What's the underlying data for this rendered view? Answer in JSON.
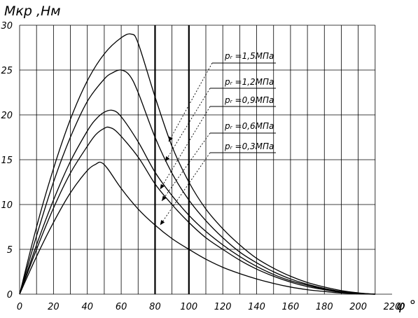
{
  "chart_data": {
    "type": "line",
    "xlabel": "φ °",
    "ylabel": "Mкр ,Нм",
    "xlim": [
      0,
      220
    ],
    "ylim": [
      0,
      30
    ],
    "xticks": [
      0,
      20,
      40,
      60,
      80,
      100,
      120,
      140,
      160,
      180,
      200,
      220
    ],
    "yticks": [
      0,
      5,
      10,
      15,
      20,
      25,
      30
    ],
    "highlighted_x": [
      80,
      100
    ],
    "grid": true,
    "series": [
      {
        "name": "pᵣ =1,5МПа",
        "points": [
          [
            0,
            0
          ],
          [
            10,
            7.5
          ],
          [
            20,
            14
          ],
          [
            30,
            19.5
          ],
          [
            40,
            23.8
          ],
          [
            50,
            26.8
          ],
          [
            60,
            28.6
          ],
          [
            66,
            29
          ],
          [
            70,
            28
          ],
          [
            80,
            22
          ],
          [
            90,
            16.5
          ],
          [
            100,
            12.5
          ],
          [
            110,
            9.5
          ],
          [
            120,
            7.3
          ],
          [
            130,
            5.5
          ],
          [
            140,
            4
          ],
          [
            150,
            2.9
          ],
          [
            160,
            2
          ],
          [
            170,
            1.3
          ],
          [
            180,
            0.8
          ],
          [
            190,
            0.4
          ],
          [
            200,
            0.15
          ],
          [
            210,
            0
          ]
        ]
      },
      {
        "name": "pᵣ =1,2МПа",
        "points": [
          [
            0,
            0
          ],
          [
            10,
            6.5
          ],
          [
            20,
            12.5
          ],
          [
            30,
            17.5
          ],
          [
            40,
            21.5
          ],
          [
            50,
            24
          ],
          [
            55,
            24.7
          ],
          [
            60,
            25
          ],
          [
            65,
            24.4
          ],
          [
            70,
            22.5
          ],
          [
            80,
            17.5
          ],
          [
            90,
            13.5
          ],
          [
            100,
            10.5
          ],
          [
            110,
            8.2
          ],
          [
            120,
            6.3
          ],
          [
            130,
            4.7
          ],
          [
            140,
            3.5
          ],
          [
            150,
            2.5
          ],
          [
            160,
            1.7
          ],
          [
            170,
            1.1
          ],
          [
            180,
            0.65
          ],
          [
            190,
            0.3
          ],
          [
            200,
            0.1
          ],
          [
            210,
            0
          ]
        ]
      },
      {
        "name": "pᵣ =0,9МПа",
        "points": [
          [
            0,
            0
          ],
          [
            10,
            5.5
          ],
          [
            20,
            10.5
          ],
          [
            30,
            14.8
          ],
          [
            40,
            18.2
          ],
          [
            45,
            19.5
          ],
          [
            50,
            20.3
          ],
          [
            55,
            20.5
          ],
          [
            60,
            19.8
          ],
          [
            70,
            17
          ],
          [
            80,
            13.6
          ],
          [
            90,
            11
          ],
          [
            100,
            8.8
          ],
          [
            110,
            7
          ],
          [
            120,
            5.5
          ],
          [
            130,
            4.2
          ],
          [
            140,
            3.1
          ],
          [
            150,
            2.2
          ],
          [
            160,
            1.5
          ],
          [
            170,
            1
          ],
          [
            180,
            0.55
          ],
          [
            190,
            0.25
          ],
          [
            200,
            0.08
          ],
          [
            210,
            0
          ]
        ]
      },
      {
        "name": "pᵣ =0,6МПа",
        "points": [
          [
            0,
            0
          ],
          [
            10,
            5
          ],
          [
            20,
            9.6
          ],
          [
            30,
            13.5
          ],
          [
            40,
            16.5
          ],
          [
            45,
            17.8
          ],
          [
            50,
            18.5
          ],
          [
            53,
            18.6
          ],
          [
            58,
            18
          ],
          [
            70,
            15.3
          ],
          [
            80,
            12.3
          ],
          [
            90,
            10
          ],
          [
            100,
            8
          ],
          [
            110,
            6.3
          ],
          [
            120,
            5
          ],
          [
            130,
            3.8
          ],
          [
            140,
            2.8
          ],
          [
            150,
            2
          ],
          [
            160,
            1.35
          ],
          [
            170,
            0.85
          ],
          [
            180,
            0.5
          ],
          [
            190,
            0.2
          ],
          [
            200,
            0.06
          ],
          [
            210,
            0
          ]
        ]
      },
      {
        "name": "pᵣ =0,3МПа",
        "points": [
          [
            0,
            0
          ],
          [
            10,
            4.2
          ],
          [
            20,
            8
          ],
          [
            30,
            11.3
          ],
          [
            40,
            13.8
          ],
          [
            45,
            14.5
          ],
          [
            48,
            14.7
          ],
          [
            52,
            14
          ],
          [
            60,
            11.8
          ],
          [
            70,
            9.5
          ],
          [
            80,
            7.7
          ],
          [
            90,
            6.2
          ],
          [
            100,
            5
          ],
          [
            110,
            3.9
          ],
          [
            120,
            3
          ],
          [
            130,
            2.3
          ],
          [
            140,
            1.7
          ],
          [
            150,
            1.2
          ],
          [
            160,
            0.8
          ],
          [
            170,
            0.5
          ],
          [
            180,
            0.3
          ],
          [
            190,
            0.13
          ],
          [
            200,
            0.04
          ],
          [
            210,
            0
          ]
        ]
      }
    ],
    "labels": [
      "pᵣ =1,5МПа",
      "pᵣ =1,2МПа",
      "pᵣ =0,9МПа",
      "pᵣ =0,6МПа",
      "pᵣ =0,3МПа"
    ],
    "label_targets": [
      [
        88,
        17
      ],
      [
        86,
        14.8
      ],
      [
        83,
        11.7
      ],
      [
        84,
        10.4
      ],
      [
        83,
        7.7
      ]
    ]
  }
}
